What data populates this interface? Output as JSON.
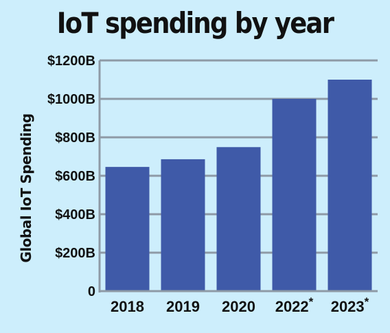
{
  "chart_data": {
    "type": "bar",
    "title": "IoT spending by year",
    "ylabel": "Global IoT Spending",
    "xlabel": "",
    "categories": [
      "2018",
      "2019",
      "2020",
      "2022*",
      "2023*"
    ],
    "values": [
      646,
      686,
      749,
      1000,
      1100
    ],
    "ylim": [
      0,
      1200
    ],
    "yticks": [
      {
        "value": 0,
        "label": "0"
      },
      {
        "value": 200,
        "label": "$200B"
      },
      {
        "value": 400,
        "label": "$400B"
      },
      {
        "value": 600,
        "label": "$600B"
      },
      {
        "value": 800,
        "label": "$800B"
      },
      {
        "value": 1000,
        "label": "$1000B"
      },
      {
        "value": 1200,
        "label": "$1200B"
      }
    ],
    "grid": true,
    "bar_color": "#3f5aa8",
    "grid_color": "#8e9aa6"
  }
}
